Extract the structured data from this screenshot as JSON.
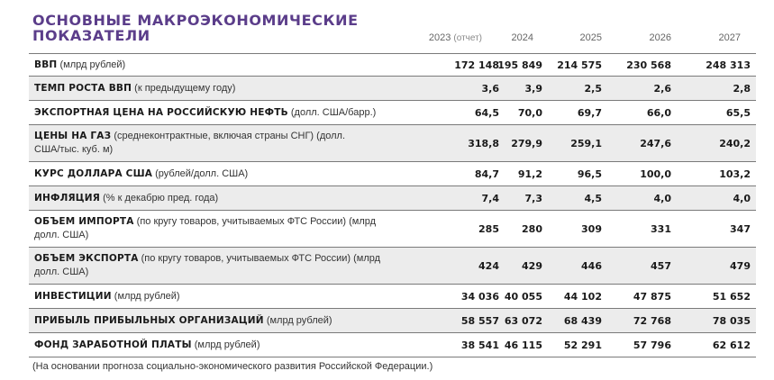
{
  "title": "ОСНОВНЫЕ МАКРОЭКОНОМИЧЕСКИЕ ПОКАЗАТЕЛИ",
  "years": [
    {
      "year": "2023",
      "sub": "(отчет)"
    },
    {
      "year": "2024",
      "sub": ""
    },
    {
      "year": "2025",
      "sub": ""
    },
    {
      "year": "2026",
      "sub": ""
    },
    {
      "year": "2027",
      "sub": ""
    }
  ],
  "rows": [
    {
      "name": "ВВП",
      "desc": "(млрд рублей)",
      "values": [
        "172 148",
        "195 849",
        "214 575",
        "230 568",
        "248 313"
      ]
    },
    {
      "name": "ТЕМП РОСТА ВВП",
      "desc": "(к предыдущему году)",
      "values": [
        "3,6",
        "3,9",
        "2,5",
        "2,6",
        "2,8"
      ]
    },
    {
      "name": "ЭКСПОРТНАЯ ЦЕНА НА РОССИЙСКУЮ НЕФТЬ",
      "desc": "(долл. США/барр.)",
      "values": [
        "64,5",
        "70,0",
        "69,7",
        "66,0",
        "65,5"
      ]
    },
    {
      "name": "ЦЕНЫ НА ГАЗ",
      "desc": "(среднеконтрактные, включая страны СНГ) (долл. США/тыс. куб. м)",
      "values": [
        "318,8",
        "279,9",
        "259,1",
        "247,6",
        "240,2"
      ]
    },
    {
      "name": "КУРС ДОЛЛАРА США",
      "desc": "(рублей/долл. США)",
      "values": [
        "84,7",
        "91,2",
        "96,5",
        "100,0",
        "103,2"
      ]
    },
    {
      "name": "ИНФЛЯЦИЯ",
      "desc": "(% к декабрю пред. года)",
      "values": [
        "7,4",
        "7,3",
        "4,5",
        "4,0",
        "4,0"
      ]
    },
    {
      "name": "ОБЪЕМ ИМПОРТА",
      "desc": "(по кругу товаров, учитываемых ФТС России) (млрд долл. США)",
      "values": [
        "285",
        "280",
        "309",
        "331",
        "347"
      ]
    },
    {
      "name": "ОБЪЕМ ЭКСПОРТА",
      "desc": "(по кругу товаров, учитываемых ФТС России) (млрд долл. США)",
      "values": [
        "424",
        "429",
        "446",
        "457",
        "479"
      ]
    },
    {
      "name": "ИНВЕСТИЦИИ",
      "desc": "(млрд рублей)",
      "values": [
        "34 036",
        "40 055",
        "44 102",
        "47 875",
        "51 652"
      ]
    },
    {
      "name": "ПРИБЫЛЬ ПРИБЫЛЬНЫХ ОРГАНИЗАЦИЙ",
      "desc": "(млрд рублей)",
      "values": [
        "58 557",
        "63 072",
        "68 439",
        "72 768",
        "78 035"
      ]
    },
    {
      "name": "ФОНД ЗАРАБОТНОЙ ПЛАТЫ",
      "desc": "(млрд рублей)",
      "values": [
        "38 541",
        "46 115",
        "52 291",
        "57 796",
        "62 612"
      ]
    }
  ],
  "note": "(На основании прогноза социально-экономического развития Российской Федерации.)"
}
